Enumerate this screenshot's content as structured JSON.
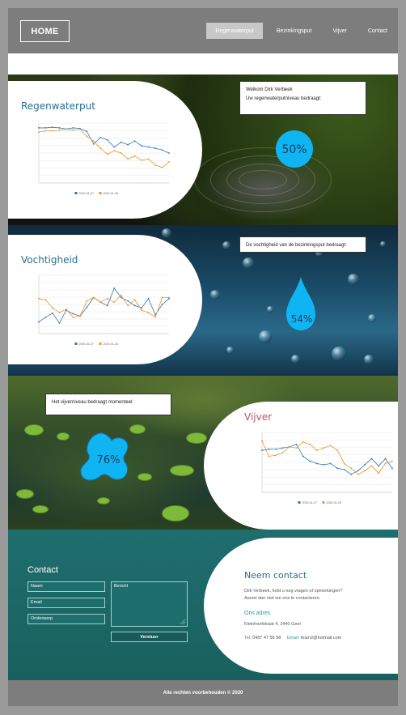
{
  "header": {
    "home_label": "HOME",
    "nav": [
      "Regenwaterput",
      "Bezinkingsput",
      "Vijver",
      "Contact"
    ],
    "active_index": 0
  },
  "rain": {
    "title": "Regenwaterput",
    "greeting": "Welkom Dirk Verbeek",
    "message": "Uw regenwaterputniveau bedraagt:",
    "level_text": "50%",
    "level": 50,
    "chart_data": {
      "type": "line",
      "series": [
        {
          "name": "2020-01-27",
          "color": "#2a7ab8",
          "values": [
            92,
            92,
            93,
            92,
            90,
            92,
            91,
            86,
            65,
            76,
            72,
            60,
            68,
            64,
            70,
            62,
            60,
            58,
            55,
            50
          ]
        },
        {
          "name": "2020-01-28",
          "color": "#f0922a",
          "values": [
            85,
            87,
            87,
            88,
            90,
            88,
            90,
            78,
            70,
            58,
            48,
            54,
            50,
            40,
            45,
            38,
            40,
            30,
            26,
            35
          ]
        }
      ],
      "ylim": [
        0,
        100
      ],
      "legend": "bottom"
    }
  },
  "moist": {
    "title": "Vochtigheid",
    "message": "De vochtigheid van de bezinkingsput bedraagt:",
    "level_text": "54%",
    "level": 54,
    "chart_data": {
      "type": "line",
      "series": [
        {
          "name": "2020-01-27",
          "color": "#2a7ab8",
          "values": [
            20,
            28,
            35,
            18,
            40,
            34,
            30,
            45,
            62,
            54,
            48,
            78,
            62,
            56,
            48,
            44,
            60,
            32,
            50,
            60
          ]
        },
        {
          "name": "2020-01-28",
          "color": "#f0922a",
          "values": [
            60,
            58,
            44,
            36,
            42,
            28,
            30,
            56,
            62,
            54,
            60,
            54,
            66,
            48,
            58,
            40,
            36,
            28,
            62,
            62
          ]
        }
      ],
      "ylim": [
        0,
        100
      ],
      "legend": "bottom"
    }
  },
  "pond": {
    "title": "Vijver",
    "message": "Het vijverniveau bedraagt momenteel:",
    "level_text": "76%",
    "level": 76,
    "chart_data": {
      "type": "line",
      "series": [
        {
          "name": "2020-01-27",
          "color": "#2a7ab8",
          "values": [
            70,
            72,
            72,
            74,
            76,
            80,
            60,
            52,
            48,
            46,
            48,
            40,
            38,
            30,
            36,
            46,
            56,
            44,
            56,
            40
          ]
        },
        {
          "name": "2020-01-28",
          "color": "#f0922a",
          "values": [
            86,
            60,
            62,
            66,
            76,
            74,
            84,
            80,
            70,
            74,
            78,
            70,
            48,
            40,
            30,
            36,
            44,
            32,
            48,
            52
          ]
        }
      ],
      "ylim": [
        0,
        100
      ],
      "legend": "bottom"
    }
  },
  "contact": {
    "title": "Contact",
    "name_placeholder": "Naam",
    "email_placeholder": "Email",
    "subject_placeholder": "Onderwerp",
    "message_placeholder": "Bericht",
    "submit_label": "Verstuur",
    "nc_title": "Neem contact",
    "nc_text1": "Dirk Verbeek, hebt u nog vragen of opmerkingen?",
    "nc_text2": "Aarzel dan niet om ons te contacteren.",
    "address_title": "Ons adres",
    "address": "Kleinhoefstraat 4, 2440 Geel",
    "tel_label": "Tel:",
    "tel": "0487 47 56 98",
    "email_label": "Email:",
    "email": "team2@hotmail.com"
  },
  "footer": {
    "text": "Alle rechten voorbehouden © 2020"
  }
}
